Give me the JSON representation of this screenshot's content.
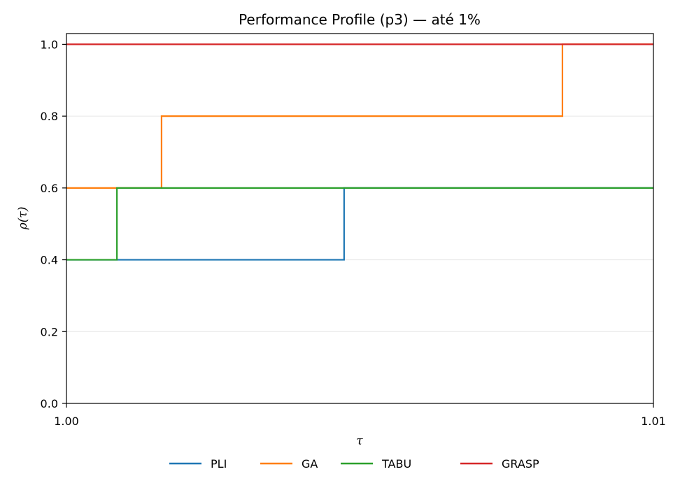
{
  "chart_data": {
    "type": "line",
    "step": "post",
    "title": "Performance Profile (p3) — até 1%",
    "xlabel": "τ",
    "ylabel": "ρ(τ)",
    "xlim": [
      1.0,
      1.01
    ],
    "ylim": [
      0.0,
      1.03
    ],
    "xticks": [
      1.0,
      1.01
    ],
    "xtick_labels": [
      "1.00",
      "1.01"
    ],
    "yticks": [
      0.0,
      0.2,
      0.4,
      0.6,
      0.8,
      1.0
    ],
    "ytick_labels": [
      "0.0",
      "0.2",
      "0.4",
      "0.6",
      "0.8",
      "1.0"
    ],
    "grid": "horizontal",
    "legend": "bottom-center",
    "series": [
      {
        "name": "PLI",
        "color": "#1f77b4",
        "x": [
          1.0,
          1.00086,
          1.00473,
          1.01
        ],
        "y": [
          0.4,
          0.4,
          0.6,
          0.6
        ]
      },
      {
        "name": "GA",
        "color": "#ff7f0e",
        "x": [
          1.0,
          1.00162,
          1.00845,
          1.01
        ],
        "y": [
          0.6,
          0.8,
          1.0,
          1.0
        ]
      },
      {
        "name": "TABU",
        "color": "#2ca02c",
        "x": [
          1.0,
          1.00086,
          1.01
        ],
        "y": [
          0.4,
          0.6,
          0.6
        ]
      },
      {
        "name": "GRASP",
        "color": "#d62728",
        "x": [
          1.0,
          1.01
        ],
        "y": [
          1.0,
          1.0
        ]
      }
    ]
  }
}
